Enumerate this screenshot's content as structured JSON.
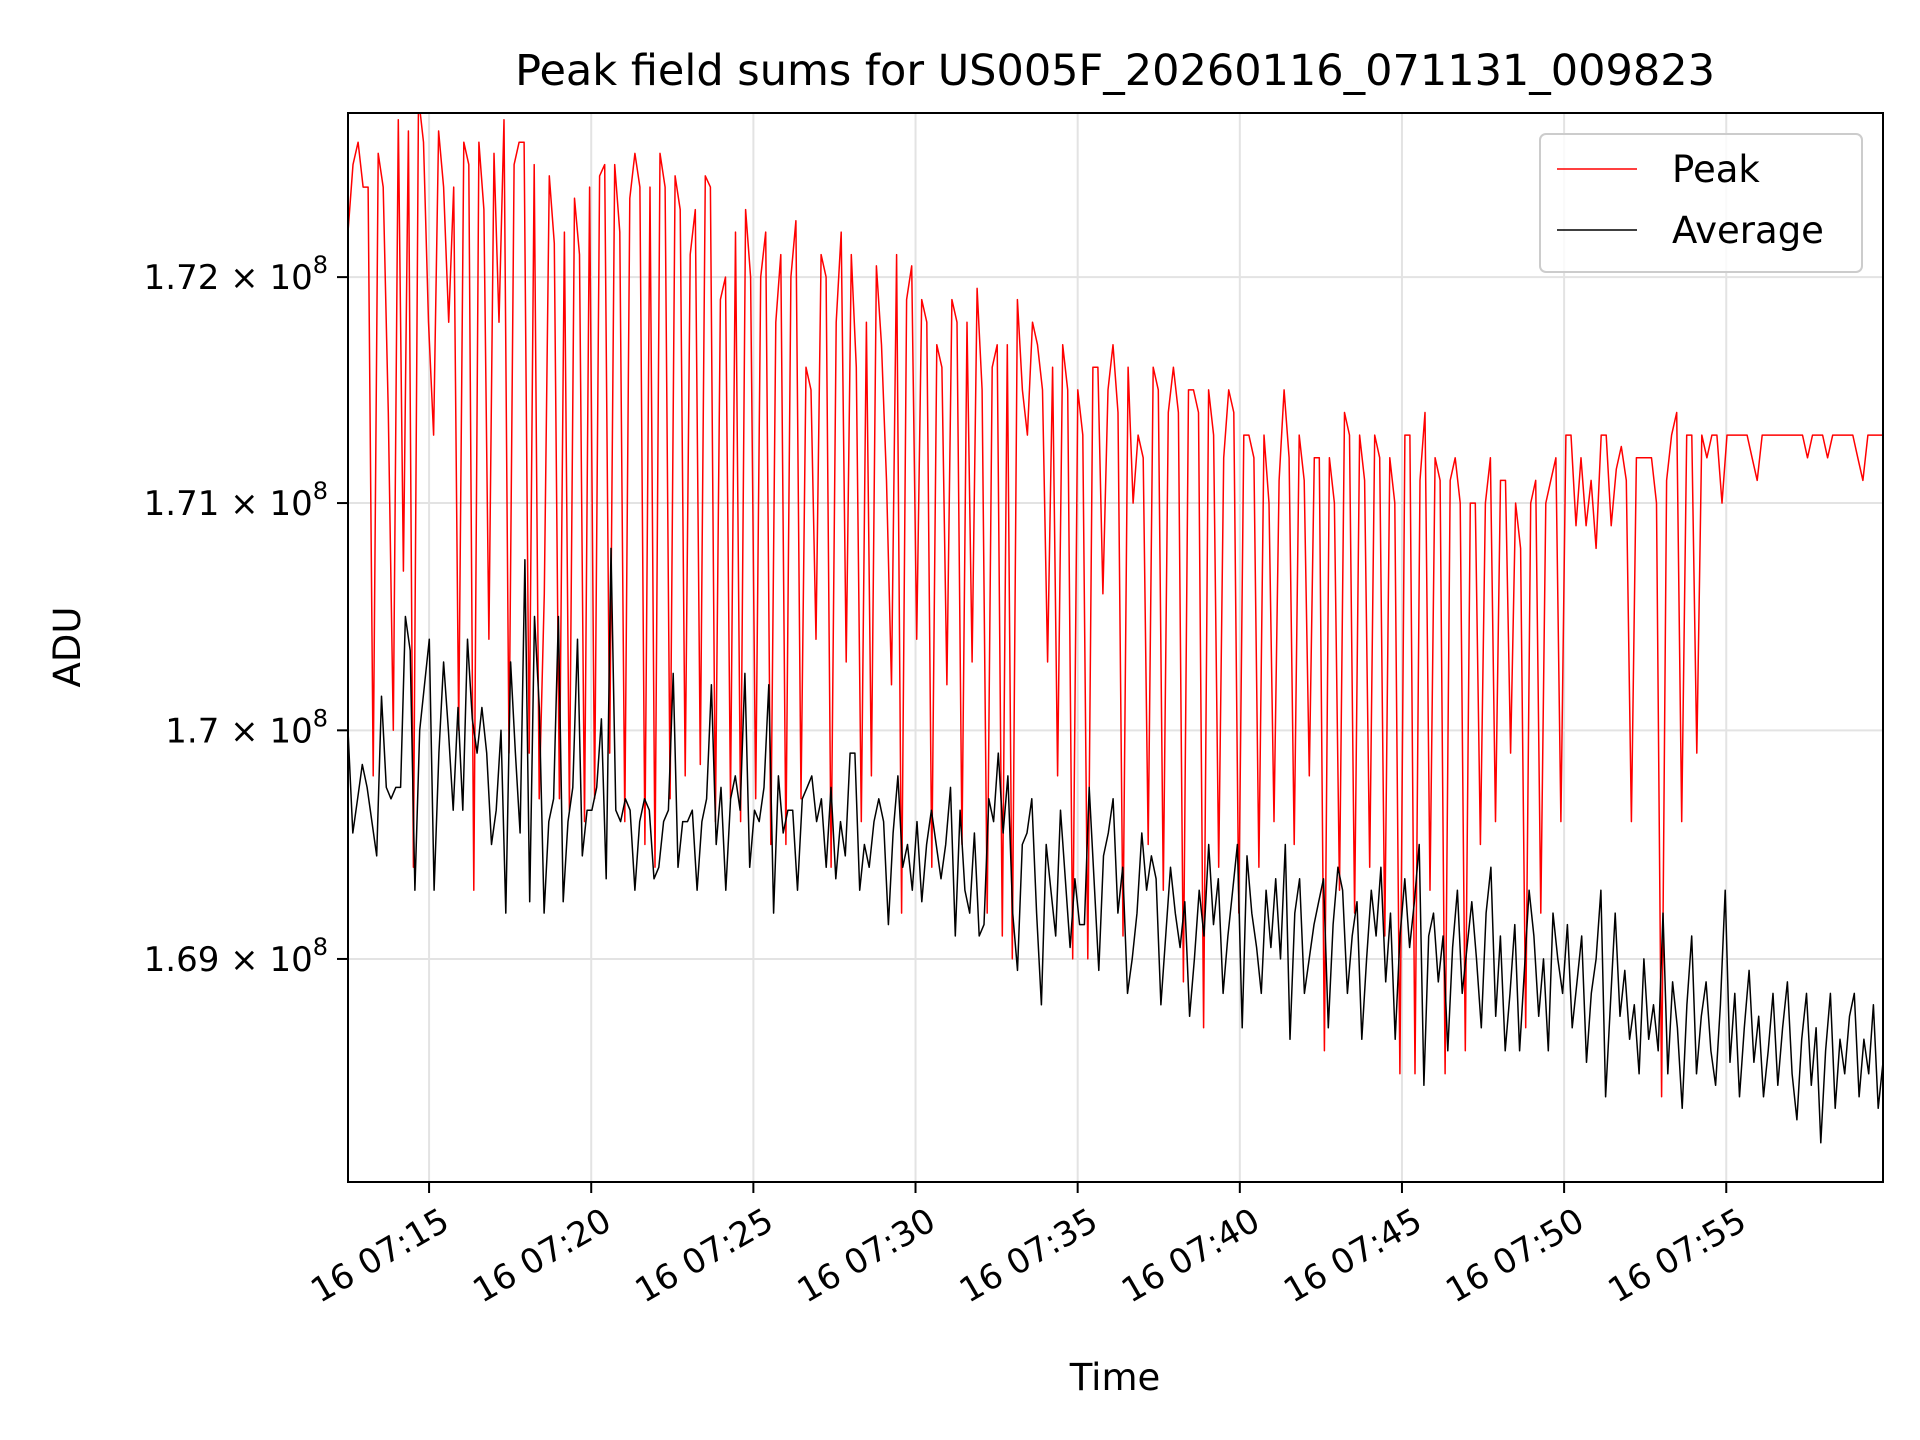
{
  "chart_data": {
    "type": "line",
    "title": "Peak field sums for US005F_20260116_071131_009823",
    "xlabel": "Time",
    "ylabel": "ADU",
    "x_start": "16 07:12:30",
    "x_end": "16 07:59:50",
    "xlim": [
      "16 07:12:30",
      "16 07:59:50"
    ],
    "ylim": [
      168030000,
      172730000
    ],
    "grid": true,
    "legend_position": "top-right",
    "x_ticks": [
      "16 07:15",
      "16 07:20",
      "16 07:25",
      "16 07:30",
      "16 07:35",
      "16 07:40",
      "16 07:45",
      "16 07:50",
      "16 07:55"
    ],
    "y_ticks": [
      {
        "value": 169000000,
        "mantissa": "1.69",
        "base": "10",
        "exp": "8"
      },
      {
        "value": 170000000,
        "mantissa": "1.7",
        "base": "10",
        "exp": "8"
      },
      {
        "value": 171000000,
        "mantissa": "1.71",
        "base": "10",
        "exp": "8"
      },
      {
        "value": 172000000,
        "mantissa": "1.72",
        "base": "10",
        "exp": "8"
      }
    ],
    "series": [
      {
        "name": "Peak",
        "color": "#ff0000",
        "values": [
          172200000,
          172500000,
          172600000,
          172400000,
          172400000,
          169800000,
          172550000,
          172400000,
          171400000,
          170000000,
          172700000,
          170700000,
          172650000,
          169400000,
          172800000,
          172600000,
          171800000,
          171300000,
          172650000,
          172400000,
          171800000,
          172400000,
          170000000,
          172600000,
          172500000,
          169300000,
          172600000,
          172300000,
          170400000,
          172550000,
          171800000,
          172700000,
          169900000,
          172500000,
          172600000,
          172600000,
          169900000,
          172500000,
          169700000,
          170600000,
          172450000,
          172150000,
          169700000,
          172200000,
          169650000,
          172350000,
          172100000,
          169600000,
          172400000,
          169700000,
          172450000,
          172500000,
          169900000,
          172500000,
          172200000,
          169600000,
          172350000,
          172550000,
          172400000,
          169500000,
          172400000,
          169400000,
          172550000,
          172400000,
          169700000,
          172450000,
          172300000,
          169800000,
          172100000,
          172300000,
          169850000,
          172450000,
          172400000,
          169600000,
          171900000,
          172000000,
          169700000,
          172200000,
          169600000,
          172300000,
          172000000,
          169700000,
          172000000,
          172200000,
          169500000,
          171800000,
          172100000,
          169500000,
          172000000,
          172250000,
          169700000,
          171600000,
          171500000,
          170400000,
          172100000,
          172000000,
          169400000,
          171800000,
          172200000,
          170300000,
          172100000,
          171600000,
          169600000,
          171800000,
          169800000,
          172050000,
          171700000,
          171100000,
          170200000,
          172100000,
          169200000,
          171900000,
          172050000,
          170400000,
          171900000,
          171800000,
          169400000,
          171700000,
          171600000,
          170200000,
          171900000,
          171800000,
          169500000,
          171800000,
          170300000,
          171950000,
          171500000,
          169200000,
          171600000,
          171700000,
          169100000,
          171700000,
          169000000,
          171900000,
          171500000,
          171300000,
          171800000,
          171700000,
          171500000,
          170300000,
          171600000,
          169800000,
          171700000,
          171500000,
          169000000,
          171500000,
          171300000,
          169000000,
          171600000,
          171600000,
          170600000,
          171500000,
          171700000,
          171400000,
          169100000,
          171600000,
          171000000,
          171300000,
          171200000,
          169500000,
          171600000,
          171500000,
          169300000,
          171400000,
          171600000,
          171400000,
          168900000,
          171500000,
          171500000,
          171400000,
          168700000,
          171500000,
          171300000,
          169400000,
          171200000,
          171500000,
          171400000,
          169200000,
          171300000,
          171300000,
          171200000,
          169400000,
          171300000,
          171000000,
          169600000,
          171100000,
          171500000,
          171200000,
          169500000,
          171300000,
          171100000,
          169800000,
          171200000,
          171200000,
          168600000,
          171200000,
          171000000,
          169300000,
          171400000,
          171300000,
          169200000,
          171300000,
          171100000,
          169400000,
          171300000,
          171200000,
          169100000,
          171200000,
          171000000,
          168500000,
          171300000,
          171300000,
          168500000,
          171100000,
          171400000,
          169300000,
          171200000,
          171100000,
          168500000,
          171100000,
          171200000,
          171000000,
          168600000,
          171000000,
          171000000,
          169500000,
          171000000,
          171200000,
          169600000,
          171100000,
          171100000,
          169900000,
          171000000,
          170800000,
          168700000,
          171000000,
          171100000,
          169200000,
          171000000,
          171100000,
          171200000,
          169600000,
          171300000,
          171300000,
          170900000,
          171200000,
          170900000,
          171100000,
          170800000,
          171300000,
          171300000,
          170900000,
          171150000,
          171250000,
          171100000,
          169600000,
          171200000,
          171200000,
          171200000,
          171200000,
          171000000,
          168400000,
          171100000,
          171300000,
          171400000,
          169600000,
          171300000,
          171300000,
          169900000,
          171300000,
          171200000,
          171300000,
          171300000,
          171000000,
          171300000,
          171300000,
          171300000,
          171300000,
          171300000,
          171200000,
          171100000,
          171300000,
          171300000,
          171300000,
          171300000,
          171300000,
          171300000,
          171300000,
          171300000,
          171300000,
          171200000,
          171300000,
          171300000,
          171300000,
          171200000,
          171300000,
          171300000,
          171300000,
          171300000,
          171300000,
          171200000,
          171100000,
          171300000,
          171300000,
          171300000,
          171300000
        ]
      },
      {
        "name": "Average",
        "color": "#000000",
        "values": [
          170000000,
          169550000,
          169700000,
          169850000,
          169750000,
          169600000,
          169450000,
          170150000,
          169750000,
          169700000,
          169750000,
          169750000,
          170500000,
          170350000,
          169300000,
          170000000,
          170200000,
          170400000,
          169300000,
          169900000,
          170300000,
          170000000,
          169650000,
          170100000,
          169650000,
          170400000,
          170050000,
          169900000,
          170100000,
          169900000,
          169500000,
          169650000,
          170000000,
          169200000,
          170300000,
          169900000,
          169550000,
          170750000,
          169250000,
          170500000,
          170100000,
          169200000,
          169600000,
          169700000,
          170500000,
          169250000,
          169600000,
          169750000,
          170400000,
          169450000,
          169650000,
          169650000,
          169750000,
          170050000,
          169350000,
          170800000,
          169650000,
          169600000,
          169700000,
          169650000,
          169300000,
          169600000,
          169700000,
          169650000,
          169350000,
          169400000,
          169600000,
          169650000,
          170250000,
          169400000,
          169600000,
          169600000,
          169650000,
          169300000,
          169600000,
          169700000,
          170200000,
          169500000,
          169750000,
          169300000,
          169700000,
          169800000,
          169650000,
          170250000,
          169400000,
          169650000,
          169600000,
          169750000,
          170200000,
          169200000,
          169800000,
          169550000,
          169650000,
          169650000,
          169300000,
          169700000,
          169750000,
          169800000,
          169600000,
          169700000,
          169400000,
          169750000,
          169350000,
          169600000,
          169450000,
          169900000,
          169900000,
          169300000,
          169500000,
          169400000,
          169600000,
          169700000,
          169600000,
          169150000,
          169550000,
          169800000,
          169400000,
          169500000,
          169300000,
          169600000,
          169250000,
          169500000,
          169650000,
          169500000,
          169350000,
          169500000,
          169750000,
          169100000,
          169650000,
          169300000,
          169200000,
          169550000,
          169100000,
          169150000,
          169700000,
          169600000,
          169900000,
          169550000,
          169800000,
          169200000,
          168950000,
          169500000,
          169550000,
          169700000,
          169200000,
          168800000,
          169500000,
          169300000,
          169100000,
          169650000,
          169350000,
          169050000,
          169350000,
          169150000,
          169150000,
          169750000,
          169350000,
          168950000,
          169450000,
          169550000,
          169700000,
          169200000,
          169400000,
          168850000,
          169000000,
          169200000,
          169550000,
          169300000,
          169450000,
          169350000,
          168800000,
          169100000,
          169400000,
          169200000,
          169050000,
          169250000,
          168750000,
          169000000,
          169300000,
          169100000,
          169500000,
          169150000,
          169350000,
          168850000,
          169100000,
          169300000,
          169500000,
          168700000,
          169450000,
          169200000,
          169050000,
          168850000,
          169300000,
          169050000,
          169350000,
          169000000,
          169500000,
          168650000,
          169200000,
          169350000,
          168850000,
          169000000,
          169150000,
          169250000,
          169350000,
          168700000,
          169150000,
          169400000,
          169300000,
          168850000,
          169100000,
          169250000,
          168650000,
          169000000,
          169300000,
          169100000,
          169400000,
          168900000,
          169200000,
          168650000,
          169100000,
          169350000,
          169050000,
          169250000,
          169500000,
          168450000,
          169100000,
          169200000,
          168900000,
          169100000,
          168600000,
          169050000,
          169300000,
          168850000,
          169050000,
          169250000,
          169000000,
          168700000,
          169200000,
          169400000,
          168750000,
          169100000,
          168600000,
          168850000,
          169150000,
          168600000,
          168950000,
          169300000,
          169100000,
          168750000,
          169000000,
          168600000,
          169200000,
          169000000,
          168850000,
          169150000,
          168700000,
          168900000,
          169100000,
          168550000,
          168850000,
          169000000,
          169300000,
          168400000,
          168800000,
          169200000,
          168750000,
          168950000,
          168650000,
          168800000,
          168500000,
          169000000,
          168650000,
          168800000,
          168600000,
          169200000,
          168500000,
          168900000,
          168700000,
          168350000,
          168800000,
          169100000,
          168500000,
          168750000,
          168900000,
          168600000,
          168450000,
          168800000,
          169300000,
          168550000,
          168850000,
          168400000,
          168700000,
          168950000,
          168550000,
          168750000,
          168400000,
          168600000,
          168850000,
          168450000,
          168700000,
          168900000,
          168500000,
          168300000,
          168650000,
          168850000,
          168450000,
          168700000,
          168200000,
          168600000,
          168850000,
          168350000,
          168650000,
          168500000,
          168750000,
          168850000,
          168400000,
          168650000,
          168500000,
          168800000,
          168350000,
          168550000
        ]
      }
    ]
  }
}
